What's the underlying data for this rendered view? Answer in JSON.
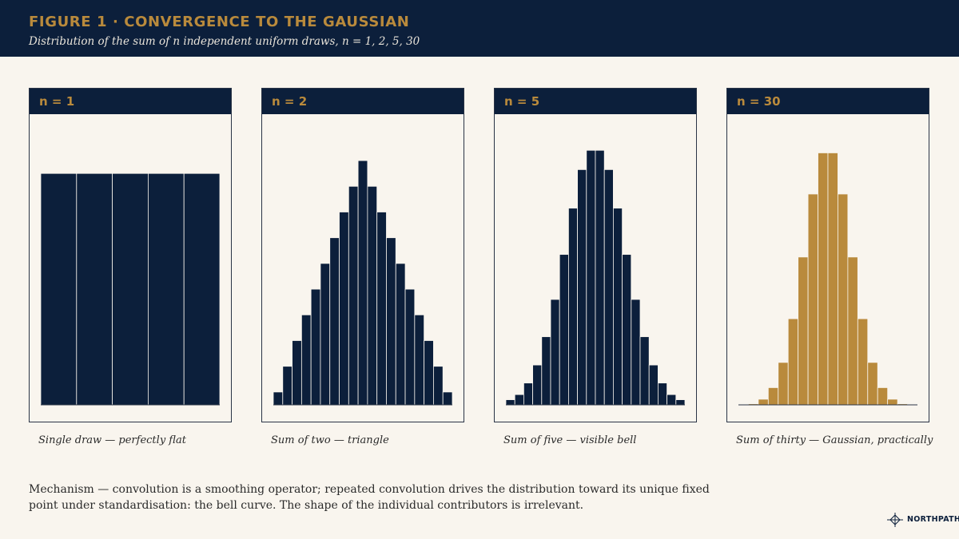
{
  "header": {
    "title": "FIGURE 1  ·  CONVERGENCE TO THE GAUSSIAN",
    "subtitle": "Distribution of the sum of n independent uniform draws, n = 1, 2, 5, 30"
  },
  "colors": {
    "navy": "#0c1f3b",
    "gold": "#b98a3c",
    "background": "#f9f5ee"
  },
  "chart_data": [
    {
      "type": "bar",
      "title": "n = 1",
      "caption": "Single draw — perfectly flat",
      "color": "#0c1f3b",
      "values": [
        0.9,
        0.9,
        0.9,
        0.9,
        0.9
      ],
      "ylim": [
        0,
        1
      ]
    },
    {
      "type": "bar",
      "title": "n = 2",
      "caption": "Sum of two — triangle",
      "color": "#0c1f3b",
      "values": [
        0.05,
        0.15,
        0.25,
        0.35,
        0.45,
        0.55,
        0.65,
        0.75,
        0.85,
        0.95,
        0.85,
        0.75,
        0.65,
        0.55,
        0.45,
        0.35,
        0.25,
        0.15,
        0.05
      ],
      "ylim": [
        0,
        1
      ]
    },
    {
      "type": "bar",
      "title": "n = 5",
      "caption": "Sum of five — visible bell",
      "color": "#0c1f3b",
      "values": [
        0.02,
        0.04,
        0.085,
        0.155,
        0.265,
        0.41,
        0.585,
        0.765,
        0.915,
        0.99,
        0.99,
        0.915,
        0.765,
        0.585,
        0.41,
        0.265,
        0.155,
        0.085,
        0.04,
        0.02
      ],
      "ylim": [
        0,
        1
      ]
    },
    {
      "type": "bar",
      "title": "n = 30",
      "caption": "Sum of thirty — Gaussian, practically",
      "color": "#b98a3c",
      "values": [
        0.001,
        0.004,
        0.022,
        0.067,
        0.165,
        0.335,
        0.575,
        0.82,
        0.98,
        0.98,
        0.82,
        0.575,
        0.335,
        0.165,
        0.067,
        0.022,
        0.004,
        0.001
      ],
      "ylim": [
        0,
        1
      ]
    }
  ],
  "footer": {
    "mechanism": "Mechanism — convolution is a smoothing operator; repeated convolution drives the distribution toward its unique fixed point under standardisation: the bell curve. The shape of the individual contributors is irrelevant.",
    "brand": "NORTHPATH",
    "brand_icon": "compass-icon"
  }
}
